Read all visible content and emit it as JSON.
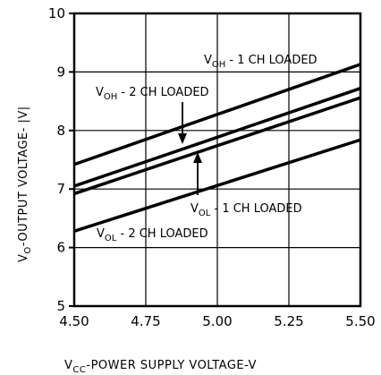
{
  "chart_data": {
    "type": "line",
    "title": "",
    "xlabel_main": "V",
    "xlabel_sub": "CC",
    "xlabel_rest": "-POWER SUPPLY VOLTAGE-V",
    "ylabel_main": "V",
    "ylabel_sub": "O",
    "ylabel_rest": "-OUTPUT VOLTAGE- |V|",
    "xlim": [
      4.5,
      5.5
    ],
    "ylim": [
      5,
      10
    ],
    "x_ticks": [
      "4.50",
      "4.75",
      "5.00",
      "5.25",
      "5.50"
    ],
    "y_ticks": [
      "5",
      "6",
      "7",
      "8",
      "9",
      "10"
    ],
    "grid": true,
    "series": [
      {
        "id": "voh1",
        "main": "V",
        "sub": "OH",
        "rest": " - 1 CH LOADED",
        "x": [
          4.5,
          5.5
        ],
        "y": [
          7.42,
          9.13
        ]
      },
      {
        "id": "voh2",
        "main": "V",
        "sub": "OH",
        "rest": " - 2 CH LOADED",
        "x": [
          4.5,
          5.5
        ],
        "y": [
          7.05,
          8.72
        ]
      },
      {
        "id": "vol1",
        "main": "V",
        "sub": "OL",
        "rest": " - 1 CH LOADED",
        "x": [
          4.5,
          5.5
        ],
        "y": [
          6.92,
          8.56
        ]
      },
      {
        "id": "vol2",
        "main": "V",
        "sub": "OL",
        "rest": " - 2 CH LOADED",
        "x": [
          4.5,
          5.5
        ],
        "y": [
          6.28,
          7.84
        ]
      }
    ]
  },
  "colors": {
    "line": "#000000",
    "grid": "#000000",
    "background": "#ffffff"
  }
}
